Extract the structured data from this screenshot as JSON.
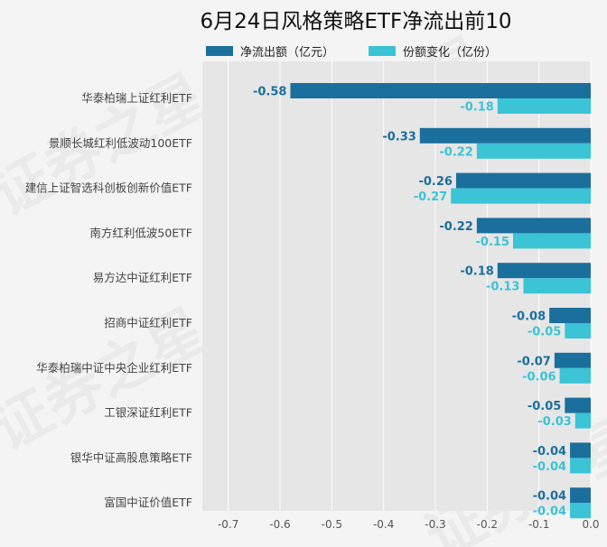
{
  "chart_data": {
    "type": "bar",
    "orientation": "horizontal",
    "title": "6月24日风格策略ETF净流出前10",
    "categories": [
      "华泰柏瑞上证红利ETF",
      "景顺长城红利低波动100ETF",
      "建信上证智选科创板创新价值ETF",
      "南方红利低波50ETF",
      "易方达中证红利ETF",
      "招商中证红利ETF",
      "华泰柏瑞中证中央企业红利ETF",
      "工银深证红利ETF",
      "银华中证高股息策略ETF",
      "富国中证价值ETF"
    ],
    "series": [
      {
        "name": "净流出额（亿元）",
        "color": "#1b6f9c",
        "values": [
          -0.58,
          -0.33,
          -0.26,
          -0.22,
          -0.18,
          -0.08,
          -0.07,
          -0.05,
          -0.04,
          -0.04
        ],
        "labels": [
          "-0.58",
          "-0.33",
          "-0.26",
          "-0.22",
          "-0.18",
          "-0.08",
          "-0.07",
          "-0.05",
          "-0.04",
          "-0.04"
        ]
      },
      {
        "name": "份额变化（亿份）",
        "color": "#3bc3d6",
        "values": [
          -0.18,
          -0.22,
          -0.27,
          -0.15,
          -0.13,
          -0.05,
          -0.06,
          -0.03,
          -0.04,
          -0.04
        ],
        "labels": [
          "-0.18",
          "-0.22",
          "-0.27",
          "-0.15",
          "-0.13",
          "-0.05",
          "-0.06",
          "-0.03",
          "-0.04",
          "-0.04"
        ]
      }
    ],
    "xlim": [
      -0.75,
      0.0
    ],
    "xticks": [
      -0.7,
      -0.6,
      -0.5,
      -0.4,
      -0.3,
      -0.2,
      -0.1,
      0.0
    ],
    "xtick_labels": [
      "-0.7",
      "-0.6",
      "-0.5",
      "-0.4",
      "-0.3",
      "-0.2",
      "-0.1",
      "0.0"
    ],
    "legend_position": "top",
    "grid": true,
    "watermark": "证券之星"
  }
}
